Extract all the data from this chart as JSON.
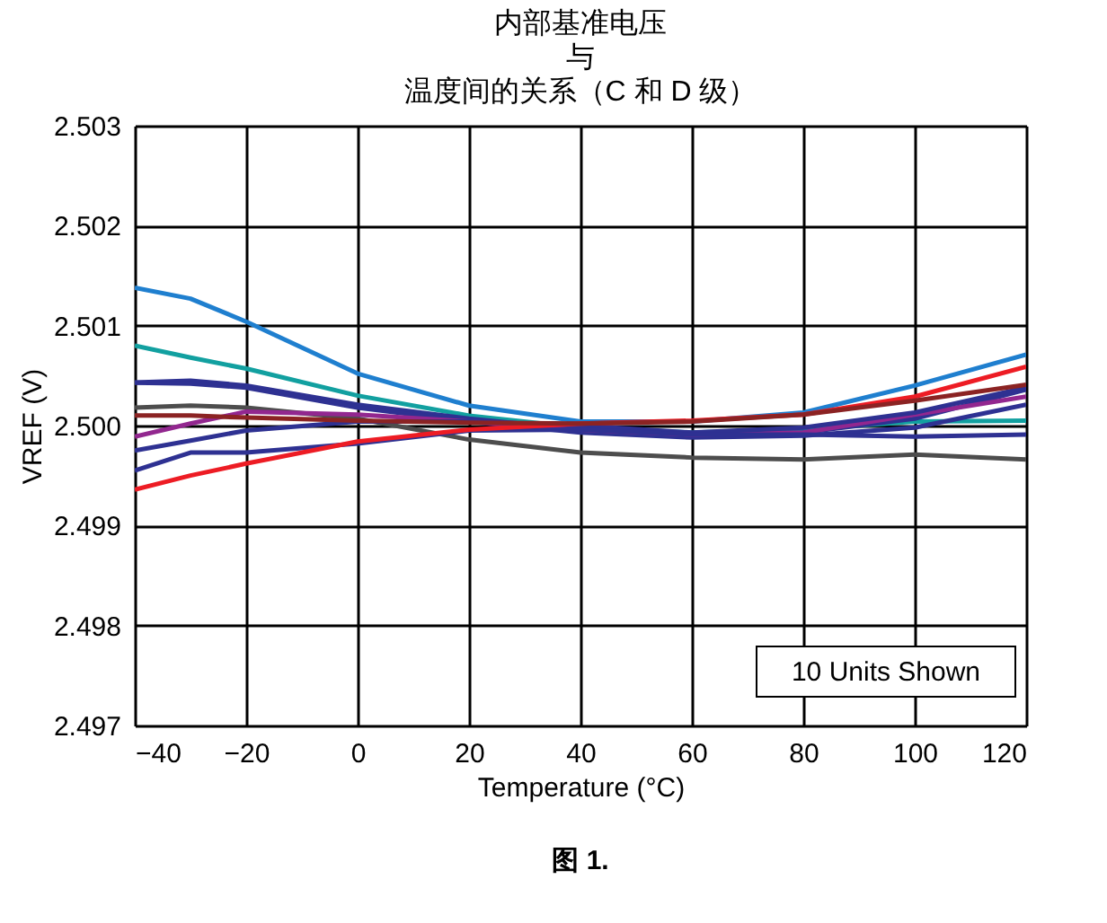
{
  "chart_data": {
    "type": "line",
    "title": [
      "内部基准电压",
      "与",
      "温度间的关系（C 和 D 级）"
    ],
    "xlabel": "Temperature (°C)",
    "ylabel": "VREF (V)",
    "x": [
      -40,
      -30,
      -20,
      0,
      20,
      40,
      60,
      80,
      100,
      120
    ],
    "series": [
      {
        "color": "#1f7fcf",
        "values": [
          2.50138,
          2.50127,
          2.50104,
          2.50052,
          2.5002,
          2.50004,
          2.50004,
          2.50013,
          2.5004,
          2.50071
        ]
      },
      {
        "color": "#12a0a0",
        "values": [
          2.5008,
          2.50068,
          2.50057,
          2.5003,
          2.5001,
          2.49998,
          2.49993,
          2.49996,
          2.50004,
          2.50005
        ]
      },
      {
        "color": "#2e3192",
        "values": [
          2.50043,
          2.50045,
          2.5004,
          2.50021,
          2.50007,
          2.49996,
          2.49991,
          2.49993,
          2.50007,
          2.50036
        ]
      },
      {
        "color": "#2e3192",
        "values": [
          2.50043,
          2.50042,
          2.50038,
          2.50018,
          2.50004,
          2.49993,
          2.49988,
          2.4999,
          2.49998,
          2.50021
        ]
      },
      {
        "color": "#4d4d4d",
        "values": [
          2.50018,
          2.5002,
          2.50018,
          2.50007,
          2.49986,
          2.49973,
          2.49968,
          2.49966,
          2.49971,
          2.49966
        ]
      },
      {
        "color": "#92278f",
        "values": [
          2.49989,
          2.50002,
          2.50014,
          2.50011,
          2.50004,
          2.49996,
          2.49991,
          2.49993,
          2.50011,
          2.50029
        ]
      },
      {
        "color": "#2e3192",
        "values": [
          2.49975,
          2.49985,
          2.49995,
          2.50004,
          2.50004,
          2.5,
          2.49993,
          2.49998,
          2.50013,
          2.50038
        ]
      },
      {
        "color": "#2e3192",
        "values": [
          2.49955,
          2.49973,
          2.49973,
          2.49982,
          2.49995,
          2.49996,
          2.49991,
          2.49991,
          2.49989,
          2.49991
        ]
      },
      {
        "color": "#ed1c24",
        "values": [
          2.49936,
          2.4995,
          2.49962,
          2.49984,
          2.49996,
          2.50002,
          2.50005,
          2.50011,
          2.50029,
          2.50059
        ]
      },
      {
        "color": "#8b2323",
        "values": [
          2.5001,
          2.5001,
          2.50008,
          2.50005,
          2.50003,
          2.50002,
          2.50004,
          2.50011,
          2.50025,
          2.50041
        ]
      }
    ],
    "xlim": [
      -40,
      120
    ],
    "xticks": [
      -40,
      -20,
      0,
      20,
      40,
      60,
      80,
      100,
      120
    ],
    "ylim": [
      2.497,
      2.503
    ],
    "yticks": [
      {
        "value": 2.497,
        "label": "2.497"
      },
      {
        "value": 2.498,
        "label": "2.498"
      },
      {
        "value": 2.499,
        "label": "2.499"
      },
      {
        "value": 2.5,
        "label": "2.500"
      },
      {
        "value": 2.501,
        "label": "2.501"
      },
      {
        "value": 2.502,
        "label": "2.502"
      },
      {
        "value": 2.503,
        "label": "2.503"
      }
    ],
    "grid": true,
    "line_style": "solid",
    "annotations": [
      "10 Units Shown",
      "图 1."
    ]
  }
}
